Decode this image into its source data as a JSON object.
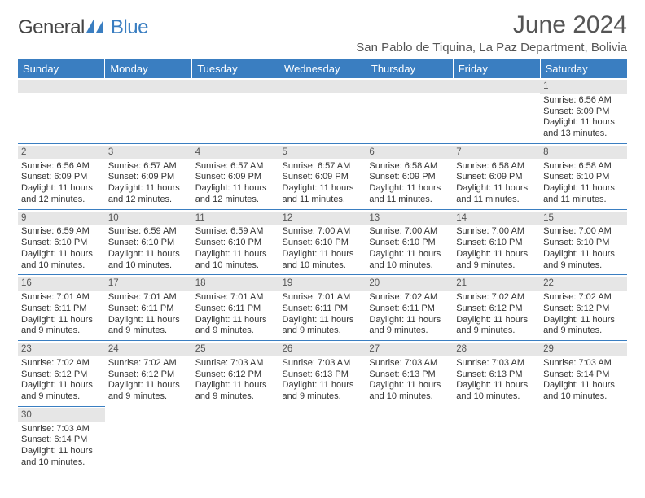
{
  "brand": {
    "name_part1": "General",
    "name_part2": "Blue"
  },
  "title": "June 2024",
  "location": "San Pablo de Tiquina, La Paz Department, Bolivia",
  "colors": {
    "header_bg": "#3a7ec1",
    "header_fg": "#ffffff",
    "band_bg": "#e6e6e6",
    "rule": "#3a7ec1",
    "text": "#333333",
    "brand_blue": "#3a7ec1"
  },
  "weekdays": [
    "Sunday",
    "Monday",
    "Tuesday",
    "Wednesday",
    "Thursday",
    "Friday",
    "Saturday"
  ],
  "weeks": [
    [
      null,
      null,
      null,
      null,
      null,
      null,
      {
        "n": "1",
        "sr": "Sunrise: 6:56 AM",
        "ss": "Sunset: 6:09 PM",
        "dl": "Daylight: 11 hours and 13 minutes."
      }
    ],
    [
      {
        "n": "2",
        "sr": "Sunrise: 6:56 AM",
        "ss": "Sunset: 6:09 PM",
        "dl": "Daylight: 11 hours and 12 minutes."
      },
      {
        "n": "3",
        "sr": "Sunrise: 6:57 AM",
        "ss": "Sunset: 6:09 PM",
        "dl": "Daylight: 11 hours and 12 minutes."
      },
      {
        "n": "4",
        "sr": "Sunrise: 6:57 AM",
        "ss": "Sunset: 6:09 PM",
        "dl": "Daylight: 11 hours and 12 minutes."
      },
      {
        "n": "5",
        "sr": "Sunrise: 6:57 AM",
        "ss": "Sunset: 6:09 PM",
        "dl": "Daylight: 11 hours and 11 minutes."
      },
      {
        "n": "6",
        "sr": "Sunrise: 6:58 AM",
        "ss": "Sunset: 6:09 PM",
        "dl": "Daylight: 11 hours and 11 minutes."
      },
      {
        "n": "7",
        "sr": "Sunrise: 6:58 AM",
        "ss": "Sunset: 6:09 PM",
        "dl": "Daylight: 11 hours and 11 minutes."
      },
      {
        "n": "8",
        "sr": "Sunrise: 6:58 AM",
        "ss": "Sunset: 6:10 PM",
        "dl": "Daylight: 11 hours and 11 minutes."
      }
    ],
    [
      {
        "n": "9",
        "sr": "Sunrise: 6:59 AM",
        "ss": "Sunset: 6:10 PM",
        "dl": "Daylight: 11 hours and 10 minutes."
      },
      {
        "n": "10",
        "sr": "Sunrise: 6:59 AM",
        "ss": "Sunset: 6:10 PM",
        "dl": "Daylight: 11 hours and 10 minutes."
      },
      {
        "n": "11",
        "sr": "Sunrise: 6:59 AM",
        "ss": "Sunset: 6:10 PM",
        "dl": "Daylight: 11 hours and 10 minutes."
      },
      {
        "n": "12",
        "sr": "Sunrise: 7:00 AM",
        "ss": "Sunset: 6:10 PM",
        "dl": "Daylight: 11 hours and 10 minutes."
      },
      {
        "n": "13",
        "sr": "Sunrise: 7:00 AM",
        "ss": "Sunset: 6:10 PM",
        "dl": "Daylight: 11 hours and 10 minutes."
      },
      {
        "n": "14",
        "sr": "Sunrise: 7:00 AM",
        "ss": "Sunset: 6:10 PM",
        "dl": "Daylight: 11 hours and 9 minutes."
      },
      {
        "n": "15",
        "sr": "Sunrise: 7:00 AM",
        "ss": "Sunset: 6:10 PM",
        "dl": "Daylight: 11 hours and 9 minutes."
      }
    ],
    [
      {
        "n": "16",
        "sr": "Sunrise: 7:01 AM",
        "ss": "Sunset: 6:11 PM",
        "dl": "Daylight: 11 hours and 9 minutes."
      },
      {
        "n": "17",
        "sr": "Sunrise: 7:01 AM",
        "ss": "Sunset: 6:11 PM",
        "dl": "Daylight: 11 hours and 9 minutes."
      },
      {
        "n": "18",
        "sr": "Sunrise: 7:01 AM",
        "ss": "Sunset: 6:11 PM",
        "dl": "Daylight: 11 hours and 9 minutes."
      },
      {
        "n": "19",
        "sr": "Sunrise: 7:01 AM",
        "ss": "Sunset: 6:11 PM",
        "dl": "Daylight: 11 hours and 9 minutes."
      },
      {
        "n": "20",
        "sr": "Sunrise: 7:02 AM",
        "ss": "Sunset: 6:11 PM",
        "dl": "Daylight: 11 hours and 9 minutes."
      },
      {
        "n": "21",
        "sr": "Sunrise: 7:02 AM",
        "ss": "Sunset: 6:12 PM",
        "dl": "Daylight: 11 hours and 9 minutes."
      },
      {
        "n": "22",
        "sr": "Sunrise: 7:02 AM",
        "ss": "Sunset: 6:12 PM",
        "dl": "Daylight: 11 hours and 9 minutes."
      }
    ],
    [
      {
        "n": "23",
        "sr": "Sunrise: 7:02 AM",
        "ss": "Sunset: 6:12 PM",
        "dl": "Daylight: 11 hours and 9 minutes."
      },
      {
        "n": "24",
        "sr": "Sunrise: 7:02 AM",
        "ss": "Sunset: 6:12 PM",
        "dl": "Daylight: 11 hours and 9 minutes."
      },
      {
        "n": "25",
        "sr": "Sunrise: 7:03 AM",
        "ss": "Sunset: 6:12 PM",
        "dl": "Daylight: 11 hours and 9 minutes."
      },
      {
        "n": "26",
        "sr": "Sunrise: 7:03 AM",
        "ss": "Sunset: 6:13 PM",
        "dl": "Daylight: 11 hours and 9 minutes."
      },
      {
        "n": "27",
        "sr": "Sunrise: 7:03 AM",
        "ss": "Sunset: 6:13 PM",
        "dl": "Daylight: 11 hours and 10 minutes."
      },
      {
        "n": "28",
        "sr": "Sunrise: 7:03 AM",
        "ss": "Sunset: 6:13 PM",
        "dl": "Daylight: 11 hours and 10 minutes."
      },
      {
        "n": "29",
        "sr": "Sunrise: 7:03 AM",
        "ss": "Sunset: 6:14 PM",
        "dl": "Daylight: 11 hours and 10 minutes."
      }
    ],
    [
      {
        "n": "30",
        "sr": "Sunrise: 7:03 AM",
        "ss": "Sunset: 6:14 PM",
        "dl": "Daylight: 11 hours and 10 minutes."
      },
      null,
      null,
      null,
      null,
      null,
      null
    ]
  ]
}
